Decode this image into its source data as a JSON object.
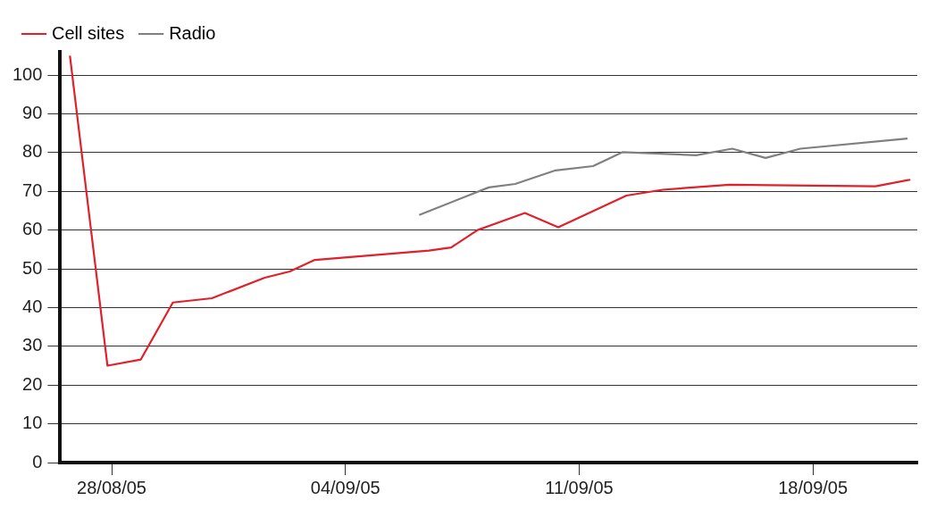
{
  "chart_data": {
    "type": "line",
    "x": [
      "--08-26T18:00",
      "--08-27T21:00",
      "--08-28T21:00",
      "--08-29T20:00",
      "--08-31T00:00",
      "--09-01T14:00",
      "--09-02T08:00",
      "--09-03T02:00",
      "--09-06T12:00",
      "--09-07T04:00",
      "--09-07T23:00",
      "--09-09T09:00",
      "--09-10T09:00",
      "--09-12T10:00",
      "--09-13T12:00",
      "--09-15T12:00",
      "--09-19T21:00",
      "--09-20T22:00"
    ],
    "series": [
      {
        "name": "Cell sites",
        "color": "#e0202a",
        "values": [
          105,
          25,
          26.6,
          41.3,
          42.4,
          47.7,
          49.3,
          52.3,
          54.7,
          55.5,
          60,
          64.4,
          60.7,
          68.9,
          70.4,
          71.7,
          71.3,
          73
        ]
      },
      {
        "name": "Radio",
        "color": "#808080",
        "x": [
          "--09-06T05:00",
          "--09-08T07:00",
          "--09-09T02:00",
          "--09-10T07:00",
          "--09-11T10:00",
          "--09-12T07:00",
          "--09-14T12:00",
          "--09-15T14:00",
          "--09-16T14:00",
          "--09-17T15:00",
          "--09-20T20:00"
        ],
        "values": [
          63.9,
          71,
          71.9,
          75.4,
          76.5,
          80.1,
          79.3,
          81,
          78.6,
          81,
          83.6
        ]
      }
    ],
    "xlim": [
      "--08-26T11:00",
      "--09-21T03:00"
    ],
    "xticks": [
      {
        "value": "--08-28",
        "label": "28/08/05"
      },
      {
        "value": "--09-04",
        "label": "04/09/05"
      },
      {
        "value": "--09-11",
        "label": "11/09/05"
      },
      {
        "value": "--09-18",
        "label": "18/09/05"
      }
    ],
    "ylim": [
      0,
      106
    ],
    "yticks": [
      0,
      10,
      20,
      30,
      40,
      50,
      60,
      70,
      80,
      90,
      100
    ],
    "grid": "y",
    "legend": "top",
    "marker": "none",
    "line_style": "solid"
  }
}
